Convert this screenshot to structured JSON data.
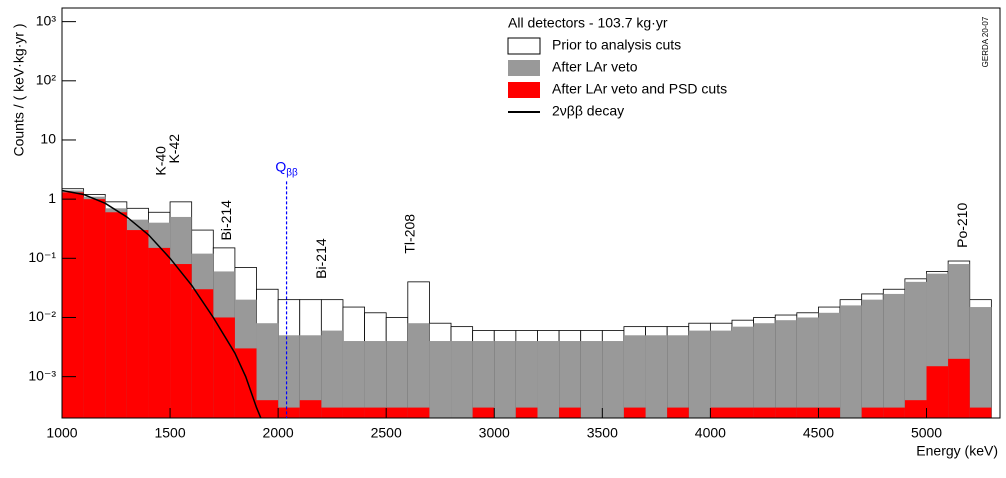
{
  "chart_data": {
    "type": "histogram",
    "title": "All detectors - 103.7 kg·yr",
    "xlabel": "Energy (keV)",
    "ylabel": "Counts / ( keV·kg·yr )",
    "watermark": "GERDA 20-07",
    "log_y": true,
    "legend": "top-right",
    "xlim": [
      1000,
      5340
    ],
    "xticks": [
      1000,
      1500,
      2000,
      2500,
      3000,
      3500,
      4000,
      4500,
      5000
    ],
    "ylim": [
      0.0002,
      1700
    ],
    "yticks": [
      {
        "value": 0.001,
        "label": "10⁻³"
      },
      {
        "value": 0.01,
        "label": "10⁻²"
      },
      {
        "value": 0.1,
        "label": "10⁻¹"
      },
      1,
      10,
      {
        "value": 100,
        "label": "10²"
      },
      {
        "value": 1000,
        "label": "10³"
      }
    ],
    "bins": [
      1000,
      1100,
      1200,
      1300,
      1400,
      1500,
      1600,
      1700,
      1800,
      1900,
      2000,
      2100,
      2200,
      2300,
      2400,
      2500,
      2600,
      2700,
      2800,
      2900,
      3000,
      3100,
      3200,
      3300,
      3400,
      3500,
      3600,
      3700,
      3800,
      3900,
      4000,
      4100,
      4200,
      4300,
      4400,
      4500,
      4600,
      4700,
      4800,
      4900,
      5000,
      5100,
      5200,
      5300
    ],
    "series": [
      {
        "name": "Prior to analysis cuts",
        "style": "outline",
        "color": "#000000",
        "values": [
          1.5,
          1.2,
          0.9,
          0.7,
          0.6,
          0.9,
          0.3,
          0.15,
          0.07,
          0.03,
          0.02,
          0.02,
          0.02,
          0.015,
          0.012,
          0.01,
          0.04,
          0.008,
          0.007,
          0.006,
          0.006,
          0.006,
          0.006,
          0.006,
          0.006,
          0.006,
          0.007,
          0.007,
          0.007,
          0.008,
          0.008,
          0.009,
          0.01,
          0.011,
          0.012,
          0.015,
          0.02,
          0.025,
          0.03,
          0.045,
          0.06,
          0.09,
          0.02
        ]
      },
      {
        "name": "After LAr veto",
        "style": "fill",
        "color": "#999999",
        "values": [
          1.4,
          1.1,
          0.7,
          0.45,
          0.4,
          0.5,
          0.12,
          0.06,
          0.02,
          0.008,
          0.005,
          0.005,
          0.006,
          0.004,
          0.004,
          0.004,
          0.008,
          0.004,
          0.004,
          0.004,
          0.004,
          0.004,
          0.004,
          0.004,
          0.004,
          0.004,
          0.005,
          0.005,
          0.005,
          0.006,
          0.006,
          0.007,
          0.008,
          0.009,
          0.01,
          0.012,
          0.016,
          0.02,
          0.025,
          0.04,
          0.055,
          0.08,
          0.015
        ]
      },
      {
        "name": "After LAr veto and PSD cuts",
        "style": "fill",
        "color": "#ff0000",
        "values": [
          1.3,
          1.0,
          0.6,
          0.3,
          0.15,
          0.08,
          0.03,
          0.01,
          0.003,
          0.0004,
          0.0003,
          0.0004,
          0.0003,
          0.0003,
          0.0003,
          0.0003,
          0.0003,
          0,
          0,
          0.0003,
          0,
          0.0003,
          0,
          0.0003,
          0,
          0,
          0.0003,
          0,
          0.0003,
          0,
          0.0003,
          0.0003,
          0.0003,
          0.0003,
          0.0003,
          0.0003,
          0,
          0.0003,
          0.0003,
          0.0004,
          0.0015,
          0.002,
          0.0003
        ]
      },
      {
        "name": "2νββ decay",
        "style": "line",
        "color": "#000000",
        "x": [
          1000,
          1100,
          1200,
          1300,
          1400,
          1500,
          1600,
          1700,
          1800,
          1850,
          1900,
          1920
        ],
        "values": [
          1.4,
          1.2,
          0.85,
          0.5,
          0.25,
          0.1,
          0.035,
          0.01,
          0.0025,
          0.001,
          0.0003,
          0.0002
        ]
      }
    ],
    "annotations": [
      {
        "text": "K-40",
        "x": 1461,
        "y": 2.5
      },
      {
        "text": "K-42",
        "x": 1525,
        "y": 4
      },
      {
        "text": "Bi-214",
        "x": 1764,
        "y": 0.2
      },
      {
        "text": "Bi-214",
        "x": 2204,
        "y": 0.045
      },
      {
        "text": "Tl-208",
        "x": 2615,
        "y": 0.12
      },
      {
        "text": "Po-210",
        "x": 5170,
        "y": 0.15
      }
    ],
    "marker": {
      "x": 2039,
      "y": 2,
      "text": "Q",
      "sub": "ββ",
      "color": "#0000ff"
    }
  }
}
